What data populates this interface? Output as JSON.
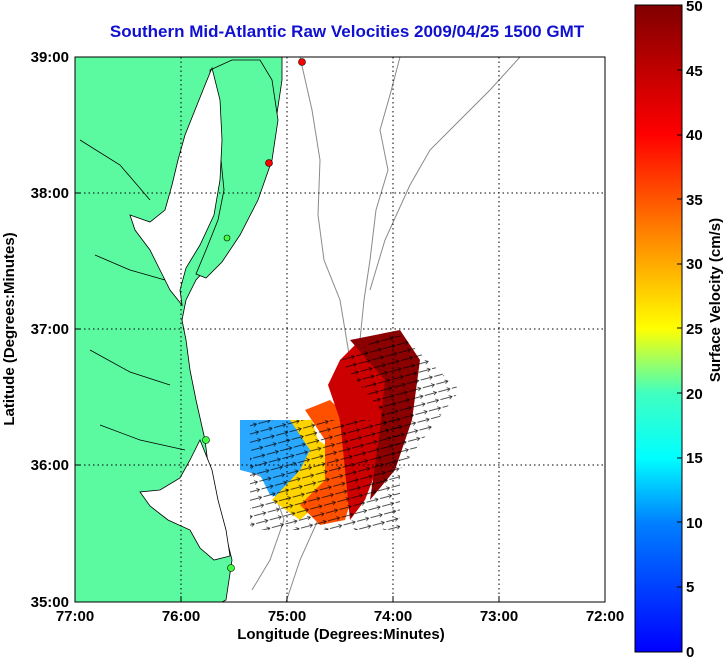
{
  "title": "Southern Mid-Atlantic Raw Velocities 2009/04/25 1500 GMT",
  "map": {
    "xlabel": "Longitude (Degrees:Minutes)",
    "ylabel": "Latitude (Degrees:Minutes)",
    "x_ticks": [
      "77:00",
      "76:00",
      "75:00",
      "74:00",
      "73:00",
      "72:00"
    ],
    "y_ticks": [
      "39:00",
      "38:00",
      "37:00",
      "36:00",
      "35:00"
    ],
    "lon_range": [
      -77,
      -72
    ],
    "lat_range": [
      35,
      39
    ],
    "grid": true,
    "land_color": "#5cfaa0",
    "station_markers": [
      {
        "color": "red"
      },
      {
        "color": "red"
      },
      {
        "color": "green"
      },
      {
        "color": "green"
      },
      {
        "color": "green"
      }
    ]
  },
  "colorbar": {
    "label": "Surface Velocity (cm/s)",
    "ticks": [
      "50",
      "45",
      "40",
      "35",
      "30",
      "25",
      "20",
      "15",
      "10",
      "5",
      "0"
    ],
    "range": [
      0,
      50
    ],
    "colormap": "jet",
    "placement": "right"
  }
}
